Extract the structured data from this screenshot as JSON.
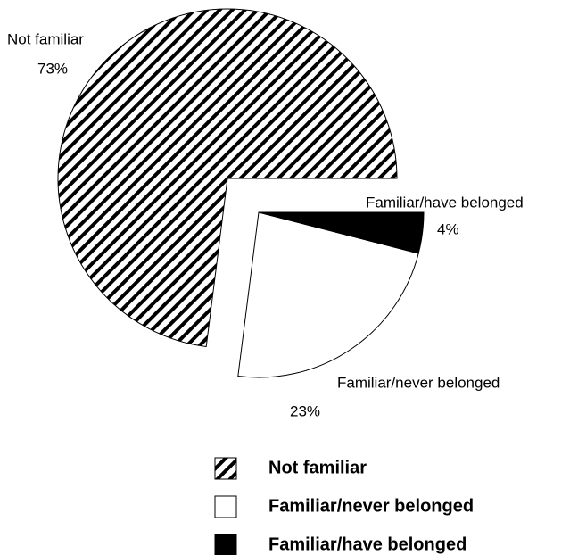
{
  "chart_data": {
    "type": "pie",
    "categories": [
      "Not familiar",
      "Familiar/never belonged",
      "Familiar/have belonged"
    ],
    "values": [
      73,
      23,
      4
    ],
    "value_labels": [
      "73%",
      "23%",
      "4%"
    ],
    "fills": [
      "hatch",
      "#ffffff",
      "#000000"
    ],
    "legend": "bottom"
  }
}
